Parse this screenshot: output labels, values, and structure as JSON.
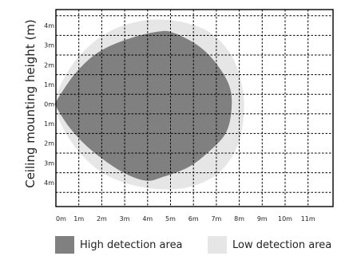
{
  "chart_data": {
    "type": "area",
    "ylabel": "Ceiling mounting height (m)",
    "x_ticks": [
      "0m",
      "1m",
      "2m",
      "3m",
      "4m",
      "5m",
      "6m",
      "7m",
      "8m",
      "9m",
      "10m",
      "11m"
    ],
    "y_ticks": [
      "4m",
      "3m",
      "2m",
      "1m",
      "0m",
      "1m",
      "2m",
      "3m",
      "4m"
    ],
    "xlim": [
      0,
      12
    ],
    "ylim": [
      -4.6,
      4.6
    ],
    "grid": true,
    "legend_position": "bottom",
    "series": [
      {
        "name": "Low detection area",
        "color": "#e6e6e6",
        "points": [
          [
            0,
            0
          ],
          [
            0.6,
            1.8
          ],
          [
            1.8,
            3.3
          ],
          [
            3.2,
            4.1
          ],
          [
            4.8,
            4.3
          ],
          [
            6.5,
            3.8
          ],
          [
            7.6,
            2.6
          ],
          [
            8.1,
            1.0
          ],
          [
            8.2,
            -0.5
          ],
          [
            7.9,
            -2.2
          ],
          [
            7.0,
            -3.6
          ],
          [
            5.5,
            -4.3
          ],
          [
            3.6,
            -4.2
          ],
          [
            1.9,
            -3.4
          ],
          [
            0.6,
            -1.8
          ]
        ]
      },
      {
        "name": "High detection area",
        "color": "#808080",
        "points": [
          [
            0,
            0.1
          ],
          [
            0.8,
            1.5
          ],
          [
            1.8,
            2.6
          ],
          [
            3.1,
            3.3
          ],
          [
            4.5,
            3.7
          ],
          [
            5.2,
            3.6
          ],
          [
            6.3,
            2.9
          ],
          [
            7.1,
            1.9
          ],
          [
            7.6,
            0.8
          ],
          [
            7.65,
            -0.4
          ],
          [
            7.4,
            -1.5
          ],
          [
            6.7,
            -2.4
          ],
          [
            5.8,
            -3.2
          ],
          [
            4.7,
            -3.7
          ],
          [
            3.9,
            -3.9
          ],
          [
            2.8,
            -3.4
          ],
          [
            1.5,
            -2.3
          ],
          [
            0.6,
            -1.2
          ],
          [
            0,
            -0.1
          ]
        ]
      }
    ]
  }
}
